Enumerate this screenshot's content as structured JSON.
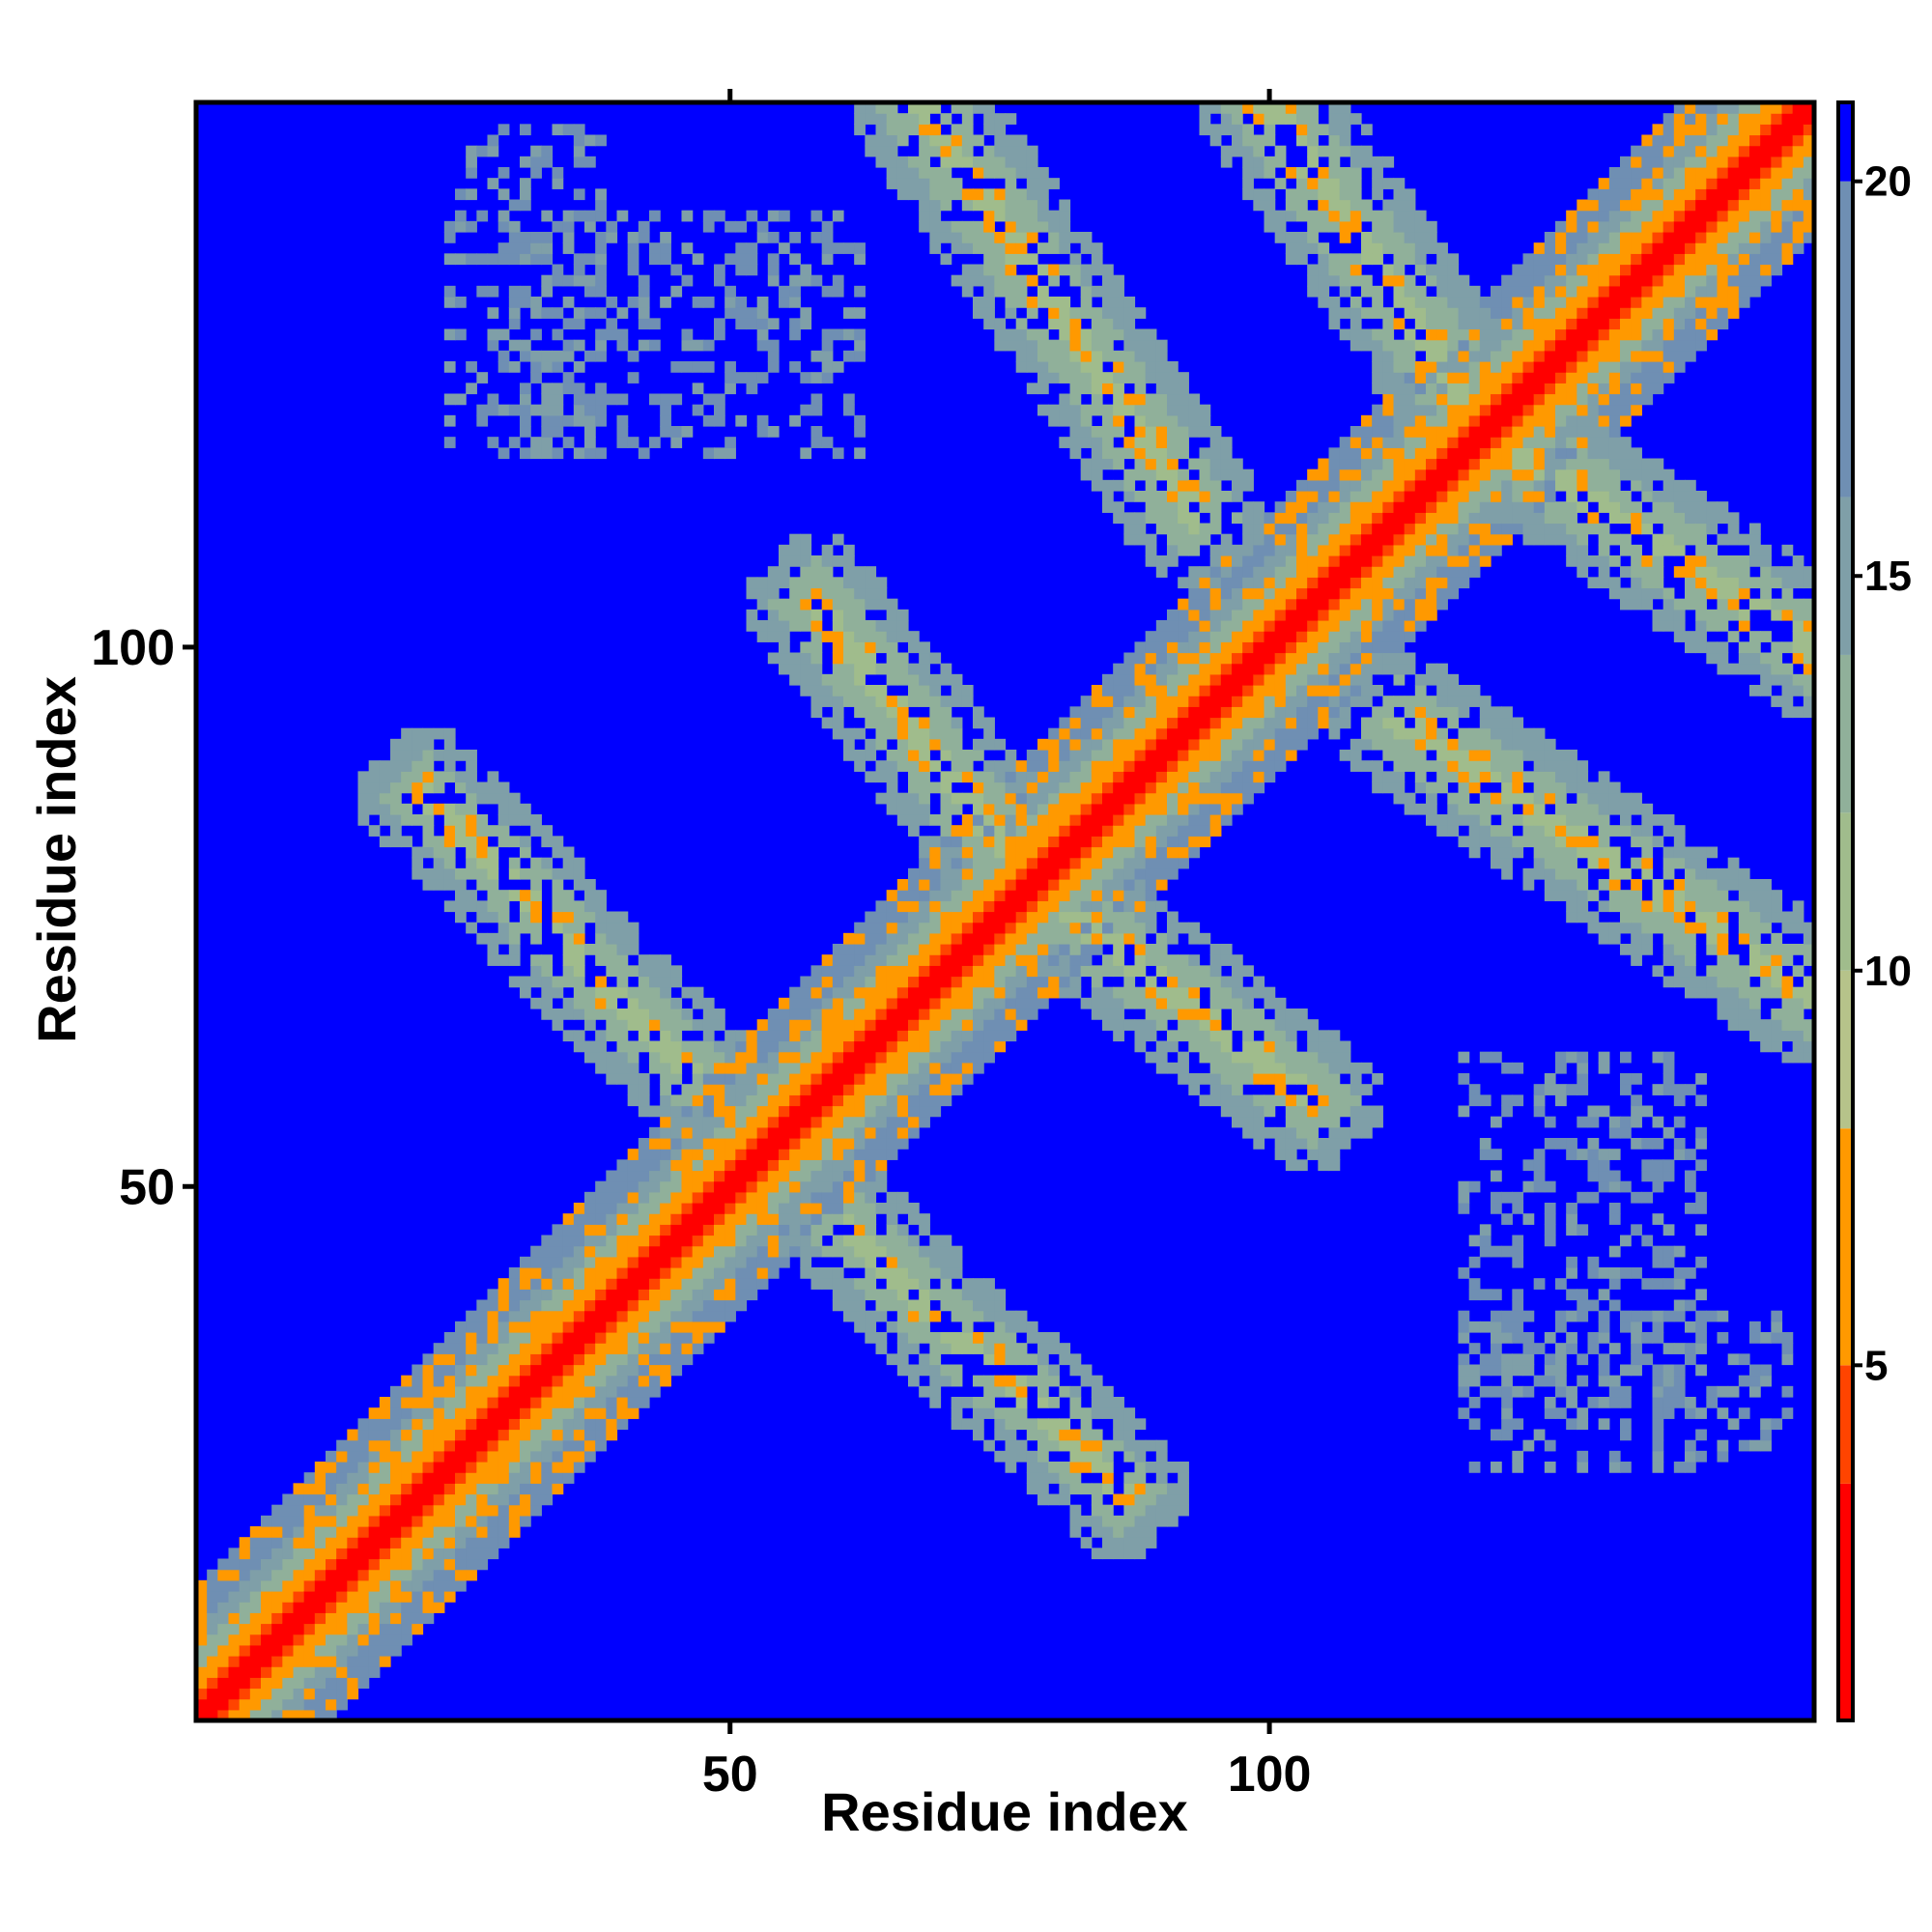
{
  "chart_data": {
    "type": "heatmap",
    "title": "",
    "xlabel": "Residue index",
    "ylabel": "Residue index",
    "n_residues": 150,
    "xlim": [
      1,
      150
    ],
    "ylim": [
      1,
      150
    ],
    "x_ticks": [
      50,
      100
    ],
    "y_ticks": [
      50,
      100
    ],
    "colorbar": {
      "ticks": [
        5,
        10,
        15,
        20
      ],
      "range": [
        0.5,
        21.0
      ],
      "position": "right"
    },
    "color_scale": [
      {
        "min": 0,
        "max": 3.5,
        "color": "#ff0000"
      },
      {
        "min": 3.5,
        "max": 5.0,
        "color": "#ff4400"
      },
      {
        "min": 5.0,
        "max": 8.0,
        "color": "#ff9900"
      },
      {
        "min": 8.0,
        "max": 10.0,
        "color": "#b6c38a"
      },
      {
        "min": 10.0,
        "max": 12.0,
        "color": "#a0bc8c"
      },
      {
        "min": 12.0,
        "max": 14.0,
        "color": "#90b09a"
      },
      {
        "min": 14.0,
        "max": 16.0,
        "color": "#7f9fa8"
      },
      {
        "min": 16.0,
        "max": 20.0,
        "color": "#6f8fb3"
      },
      {
        "min": 20.0,
        "max": 99,
        "color": "#0000ff"
      }
    ],
    "background_color": "#0000ff",
    "contact_features": [
      {
        "kind": "diagonal",
        "value_at_center": 1.5,
        "width": 9
      },
      {
        "kind": "anti-diagonal",
        "i_range": [
          22,
          46
        ],
        "j_range": [
          61,
          86
        ],
        "base_value": 11,
        "contact": 6.5
      },
      {
        "kind": "anti-diagonal",
        "i_range": [
          58,
          78
        ],
        "j_range": [
          78,
          104
        ],
        "base_value": 11,
        "contact": 6.5
      },
      {
        "kind": "anti-diagonal",
        "i_range": [
          68,
          93
        ],
        "j_range": [
          112,
          150
        ],
        "base_value": 11,
        "contact": 6.5
      },
      {
        "kind": "anti-diagonal",
        "i_range": [
          100,
          121
        ],
        "j_range": [
          119,
          150
        ],
        "base_value": 11,
        "contact": 6.5
      },
      {
        "kind": "scatter",
        "i_range": [
          24,
          38
        ],
        "j_range": [
          118,
          148
        ],
        "base_value": 15
      },
      {
        "kind": "scatter",
        "i_range": [
          118,
          140
        ],
        "j_range": [
          30,
          62
        ],
        "base_value": 15
      }
    ]
  }
}
